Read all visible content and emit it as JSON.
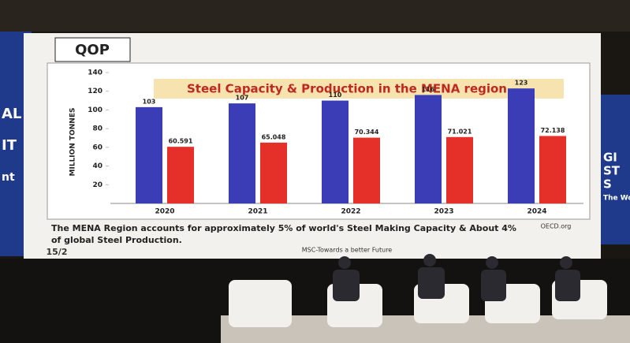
{
  "chart_data": {
    "type": "bar",
    "logo": "QOP",
    "title": "Steel Capacity & Production in the MENA region",
    "y_label": "MILLION TONNES",
    "categories": [
      "2020",
      "2021",
      "2022",
      "2023",
      "2024"
    ],
    "series": [
      {
        "color": "#3a3db5",
        "values": [
          103,
          107,
          110,
          116,
          123
        ]
      },
      {
        "color": "#e5302a",
        "values": [
          60.591,
          65.048,
          70.344,
          71.021,
          72.138
        ]
      }
    ],
    "ylim": [
      0,
      140
    ],
    "yticks": [
      20,
      40,
      60,
      80,
      100,
      120,
      140
    ],
    "grid": false,
    "note": "The MENA Region accounts for approximately 5% of world's Steel Making Capacity & About 4% of global Steel Production.",
    "source": "OECD.org",
    "footer": "MSC-Towards a better Future",
    "page_number": "15/2"
  },
  "left_banner": [
    "AL",
    "IT",
    "nt"
  ],
  "right_banner": [
    "GI",
    "ST",
    "S",
    "The World'"
  ]
}
